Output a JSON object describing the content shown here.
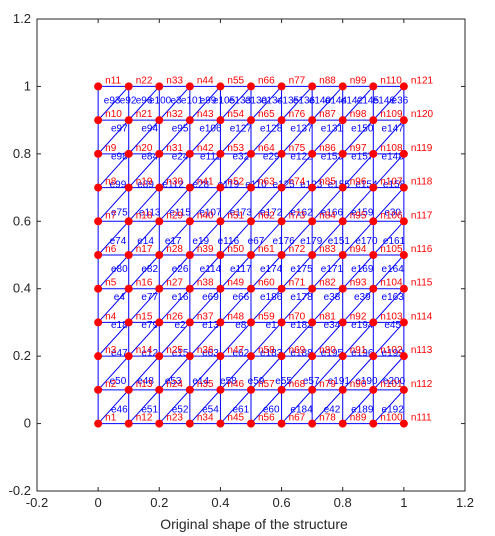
{
  "chart_data": {
    "type": "scatter",
    "title": "",
    "xlabel": "Original shape of the structure",
    "ylabel": "",
    "xlim": [
      -0.2,
      1.2
    ],
    "ylim": [
      -0.2,
      1.2
    ],
    "xticks": [
      "-0.2",
      "0",
      "0.2",
      "0.4",
      "0.6",
      "0.8",
      "1",
      "1.2"
    ],
    "yticks": [
      "-0.2",
      "0",
      "0.2",
      "0.4",
      "0.6",
      "0.8",
      "1",
      "1.2"
    ],
    "grid": false,
    "legend": "none",
    "mesh": {
      "x_min": 0,
      "x_max": 1,
      "y_min": 0,
      "y_max": 1,
      "divisions_x": 10,
      "divisions_y": 10,
      "diagonals": "from bottom-left to top-right of each cell"
    },
    "node_labels_rows_top_to_bottom": [
      [
        "n11",
        "n22",
        "n33",
        "n44",
        "n55",
        "n66",
        "n77",
        "n88",
        "n99",
        "n110",
        "n121"
      ],
      [
        "n10",
        "n21",
        "n32",
        "n43",
        "n54",
        "n65",
        "n76",
        "n87",
        "n98",
        "n109",
        "n120"
      ],
      [
        "n9",
        "n20",
        "n31",
        "n42",
        "n53",
        "n64",
        "n75",
        "n86",
        "n97",
        "n108",
        "n119"
      ],
      [
        "n8",
        "n19",
        "n30",
        "n41",
        "n52",
        "n63",
        "n74",
        "n85",
        "n96",
        "n107",
        "n118"
      ],
      [
        "n7",
        "n18",
        "n29",
        "n40",
        "n51",
        "n62",
        "n73",
        "n84",
        "n95",
        "n106",
        "n117"
      ],
      [
        "n6",
        "n17",
        "n28",
        "n39",
        "n50",
        "n61",
        "n72",
        "n83",
        "n94",
        "n105",
        "n116"
      ],
      [
        "n5",
        "n16",
        "n27",
        "n38",
        "n49",
        "n60",
        "n71",
        "n82",
        "n93",
        "n104",
        "n115"
      ],
      [
        "n4",
        "n15",
        "n26",
        "n37",
        "n48",
        "n59",
        "n70",
        "n81",
        "n92",
        "n103",
        "n114"
      ],
      [
        "n3",
        "n14",
        "n25",
        "n36",
        "n47",
        "n58",
        "n69",
        "n80",
        "n91",
        "n102",
        "n113"
      ],
      [
        "n2",
        "n13",
        "n24",
        "n35",
        "n46",
        "n57",
        "n68",
        "n79",
        "n90",
        "n101",
        "n112"
      ],
      [
        "n1",
        "n12",
        "n23",
        "n34",
        "n45",
        "n56",
        "n67",
        "n78",
        "n89",
        "n100",
        "n111"
      ]
    ],
    "element_labels_rows_top_to_bottom": [
      [
        "e93",
        "e92",
        "e96",
        "e100",
        "e3",
        "e101",
        "e99",
        "e105",
        "e133",
        "e130",
        "e134",
        "e135",
        "e136",
        "e140",
        "e144",
        "e142",
        "e145",
        "e146",
        "e36"
      ],
      [
        "e97",
        "e94",
        "e95",
        "e106",
        "e127",
        "e128",
        "e137",
        "e131",
        "e150",
        "e147"
      ],
      [
        "e98",
        "e84",
        "e24",
        "e111",
        "e32",
        "e29",
        "e122",
        "e153",
        "e157",
        "e148"
      ],
      [
        "e99",
        "e89",
        "e112",
        "e28",
        "e119",
        "e110",
        "e125",
        "e123",
        "e155",
        "e154",
        "e158"
      ],
      [
        "e75",
        "e113",
        "e115",
        "e107",
        "e173",
        "e172",
        "e162",
        "e166",
        "e159",
        "e30"
      ],
      [
        "e74",
        "e14",
        "e17",
        "e19",
        "e116",
        "e67",
        "e176",
        "e179",
        "e151",
        "e170",
        "e161"
      ],
      [
        "e80",
        "e82",
        "e26",
        "e114",
        "e117",
        "e174",
        "e175",
        "e171",
        "e169",
        "e164"
      ],
      [
        "e4",
        "e77",
        "e16",
        "e69",
        "e66",
        "e186",
        "e178",
        "e38",
        "e39",
        "e163"
      ],
      [
        "e18",
        "e79",
        "e2",
        "e13",
        "e8",
        "e1",
        "e181",
        "e34",
        "e194",
        "e45"
      ],
      [
        "e47",
        "e12",
        "e15",
        "e63",
        "e62",
        "e183",
        "e188",
        "e195",
        "e196",
        "e199"
      ],
      [
        "e50",
        "e48",
        "e53",
        "e14",
        "e58",
        "e59",
        "e55",
        "e57",
        "e191",
        "e190",
        "e200"
      ],
      [
        "e46",
        "e51",
        "e52",
        "e54",
        "e61",
        "e60",
        "e184",
        "e42",
        "e189",
        "e192"
      ]
    ],
    "colors": {
      "mesh": "#0000ff",
      "nodes": "#ff0000",
      "node_labels": "#ff0000",
      "element_labels": "#0000ff",
      "axes": "#262626"
    }
  }
}
